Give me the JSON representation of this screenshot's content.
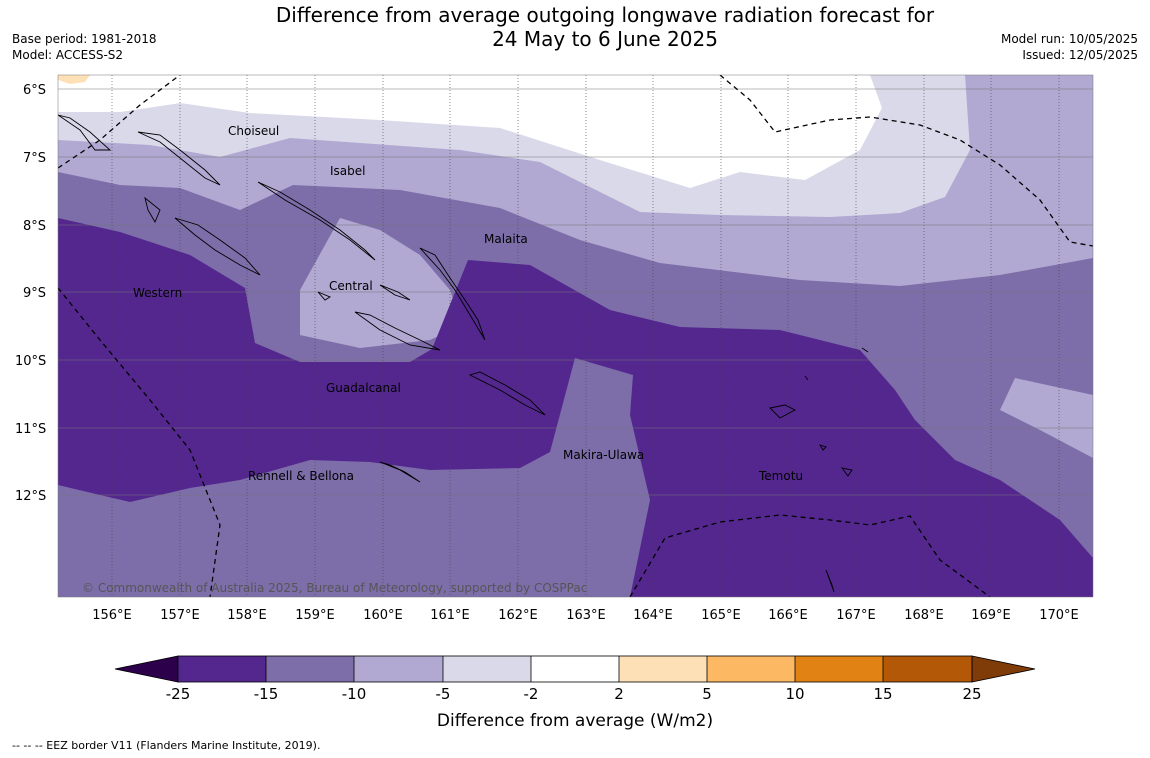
{
  "title": {
    "line1": "Difference from average outgoing longwave radiation forecast for",
    "line2": "24 May to 6 June 2025"
  },
  "meta_left": {
    "base_period": "Base period: 1981-2018",
    "model": "Model: ACCESS-S2"
  },
  "meta_right": {
    "model_run": "Model run: 10/05/2025",
    "issued": "Issued: 12/05/2025"
  },
  "map": {
    "lat_labels": [
      "6°S",
      "7°S",
      "8°S",
      "9°S",
      "10°S",
      "11°S",
      "12°S"
    ],
    "lon_labels": [
      "156°E",
      "157°E",
      "158°E",
      "159°E",
      "160°E",
      "161°E",
      "162°E",
      "163°E",
      "164°E",
      "165°E",
      "166°E",
      "167°E",
      "168°E",
      "169°E",
      "170°E"
    ],
    "regions": [
      "Choiseul",
      "Isabel",
      "Malaita",
      "Western",
      "Central",
      "Guadalcanal",
      "Makira-Ulawa",
      "Rennell & Bellona",
      "Temotu"
    ],
    "copyright": "© Commonwealth of Australia 2025, Bureau of Meteorology, supported by COSPPac"
  },
  "colorbar": {
    "title": "Difference from average (W/m2)",
    "ticks": [
      "-25",
      "-15",
      "-10",
      "-5",
      "-2",
      "2",
      "5",
      "10",
      "15",
      "25"
    ],
    "colors": [
      "#54278f",
      "#7d6eaa",
      "#b1a9d2",
      "#dad9ea",
      "#ffffff",
      "#fee0b6",
      "#fdb863",
      "#e08214",
      "#b35806"
    ],
    "under_color": "#2d004b",
    "over_color": "#7f3b08"
  },
  "footer": {
    "eez_note": "--  --  -- EEZ border V11 (Flanders Marine Institute, 2019)."
  }
}
